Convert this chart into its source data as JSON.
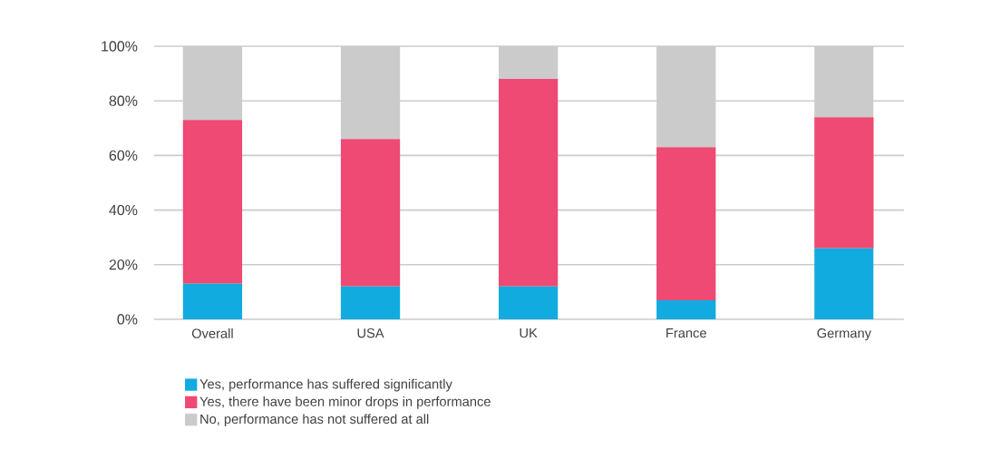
{
  "chart_data": {
    "type": "bar",
    "stacked": true,
    "categories": [
      "Overall",
      "USA",
      "UK",
      "France",
      "Germany"
    ],
    "series": [
      {
        "name": "Yes, performance has suffered significantly",
        "color": "#12abe0",
        "values": [
          13,
          12,
          12,
          7,
          26
        ]
      },
      {
        "name": "Yes, there have been minor drops in performance",
        "color": "#ee4a73",
        "values": [
          60,
          54,
          76,
          56,
          48
        ]
      },
      {
        "name": "No, performance has not suffered at all",
        "color": "#cbcbcb",
        "values": [
          27,
          34,
          12,
          37,
          26
        ]
      }
    ],
    "ylim": [
      0,
      100
    ],
    "yticks": [
      {
        "value": 0,
        "label": "0%"
      },
      {
        "value": 20,
        "label": "20%"
      },
      {
        "value": 40,
        "label": "40%"
      },
      {
        "value": 60,
        "label": "60%"
      },
      {
        "value": 80,
        "label": "80%"
      },
      {
        "value": 100,
        "label": "100%"
      }
    ],
    "grid": "y",
    "legend": "bottom left"
  }
}
